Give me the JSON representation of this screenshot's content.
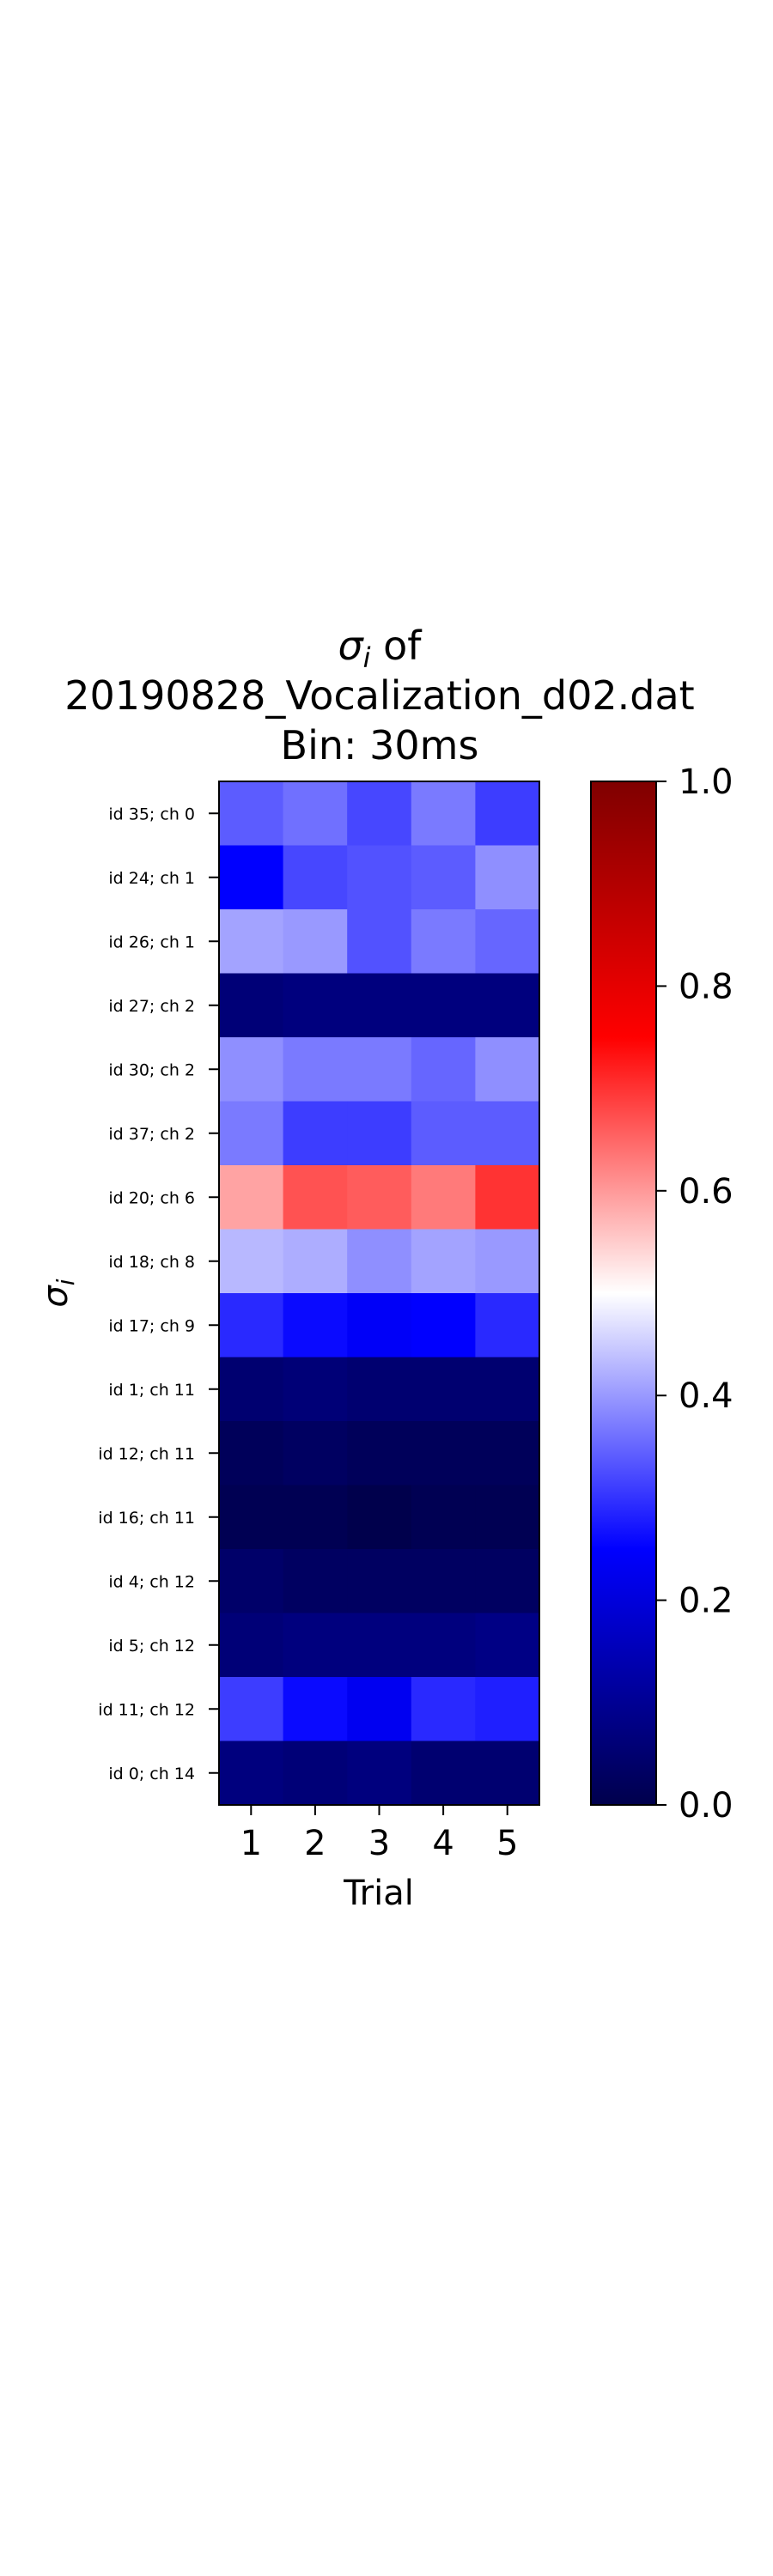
{
  "chart_data": {
    "type": "heatmap",
    "title": {
      "symbol": "σ",
      "subscript": "i",
      "line1_suffix": " of",
      "line2": "20190828_Vocalization_d02.dat",
      "line3": "Bin: 30ms"
    },
    "xlabel": "Trial",
    "ylabel": {
      "symbol": "σ",
      "subscript": "i"
    },
    "x": [
      "1",
      "2",
      "3",
      "4",
      "5"
    ],
    "rows": [
      "id 35; ch 0",
      "id 24; ch 1",
      "id 26; ch 1",
      "id 27; ch 2",
      "id 30; ch 2",
      "id 37; ch 2",
      "id 20; ch 6",
      "id 18; ch 8",
      "id 17; ch 9",
      "id 1; ch 11",
      "id 12; ch 11",
      "id 16; ch 11",
      "id 4; ch 12",
      "id 5; ch 12",
      "id 11; ch 12",
      "id 0; ch 14"
    ],
    "values": [
      [
        0.34,
        0.36,
        0.32,
        0.37,
        0.31
      ],
      [
        0.25,
        0.32,
        0.33,
        0.34,
        0.39
      ],
      [
        0.41,
        0.4,
        0.33,
        0.37,
        0.35
      ],
      [
        0.06,
        0.07,
        0.07,
        0.07,
        0.07
      ],
      [
        0.39,
        0.37,
        0.37,
        0.35,
        0.39
      ],
      [
        0.37,
        0.31,
        0.31,
        0.34,
        0.34
      ],
      [
        0.59,
        0.67,
        0.66,
        0.63,
        0.7
      ],
      [
        0.43,
        0.42,
        0.39,
        0.41,
        0.4
      ],
      [
        0.29,
        0.26,
        0.24,
        0.25,
        0.29
      ],
      [
        0.05,
        0.06,
        0.05,
        0.05,
        0.05
      ],
      [
        0.02,
        0.03,
        0.02,
        0.02,
        0.02
      ],
      [
        0.01,
        0.01,
        0.0,
        0.01,
        0.01
      ],
      [
        0.04,
        0.03,
        0.03,
        0.03,
        0.03
      ],
      [
        0.06,
        0.07,
        0.07,
        0.07,
        0.08
      ],
      [
        0.31,
        0.26,
        0.23,
        0.29,
        0.28
      ],
      [
        0.07,
        0.06,
        0.07,
        0.05,
        0.05
      ]
    ],
    "colormap": "seismic",
    "colormap_stops": [
      "#00004c",
      "#0000ff",
      "#ffffff",
      "#ff0000",
      "#7f0000"
    ],
    "clim": [
      0.0,
      1.0
    ],
    "colorbar_ticks": [
      "0.0",
      "0.2",
      "0.4",
      "0.6",
      "0.8",
      "1.0"
    ],
    "grid": false
  }
}
